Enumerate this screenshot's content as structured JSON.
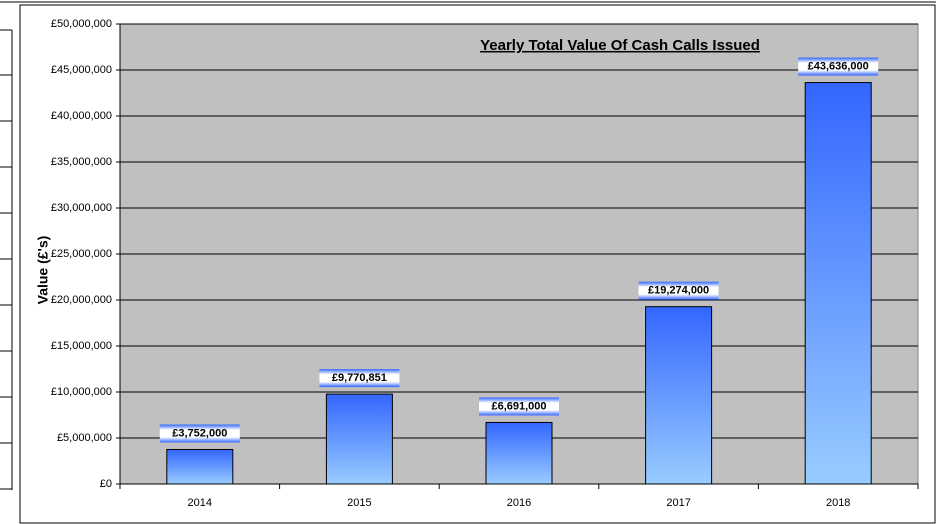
{
  "chart_data": {
    "type": "bar",
    "title": "Yearly  Total Value Of Cash Calls Issued",
    "y_label": "Value (£'s)",
    "categories": [
      "2014",
      "2015",
      "2016",
      "2017",
      "2018"
    ],
    "values": [
      3752000,
      9770851,
      6691000,
      19274000,
      43636000
    ],
    "value_labels": [
      "£3,752,000",
      "£9,770,851",
      "£6,691,000",
      "£19,274,000",
      "£43,636,000"
    ],
    "color": "#3366ff",
    "ylim": [
      0,
      50000000
    ],
    "yticks": [
      {
        "value": 0,
        "label": "£0"
      },
      {
        "value": 5000000,
        "label": "£5,000,000"
      },
      {
        "value": 10000000,
        "label": "£10,000,000"
      },
      {
        "value": 15000000,
        "label": "£15,000,000"
      },
      {
        "value": 20000000,
        "label": "£20,000,000"
      },
      {
        "value": 25000000,
        "label": "£25,000,000"
      },
      {
        "value": 30000000,
        "label": "£30,000,000"
      },
      {
        "value": 35000000,
        "label": "£35,000,000"
      },
      {
        "value": 40000000,
        "label": "£40,000,000"
      },
      {
        "value": 45000000,
        "label": "£45,000,000"
      },
      {
        "value": 50000000,
        "label": "£50,000,000"
      }
    ],
    "grid": true
  }
}
